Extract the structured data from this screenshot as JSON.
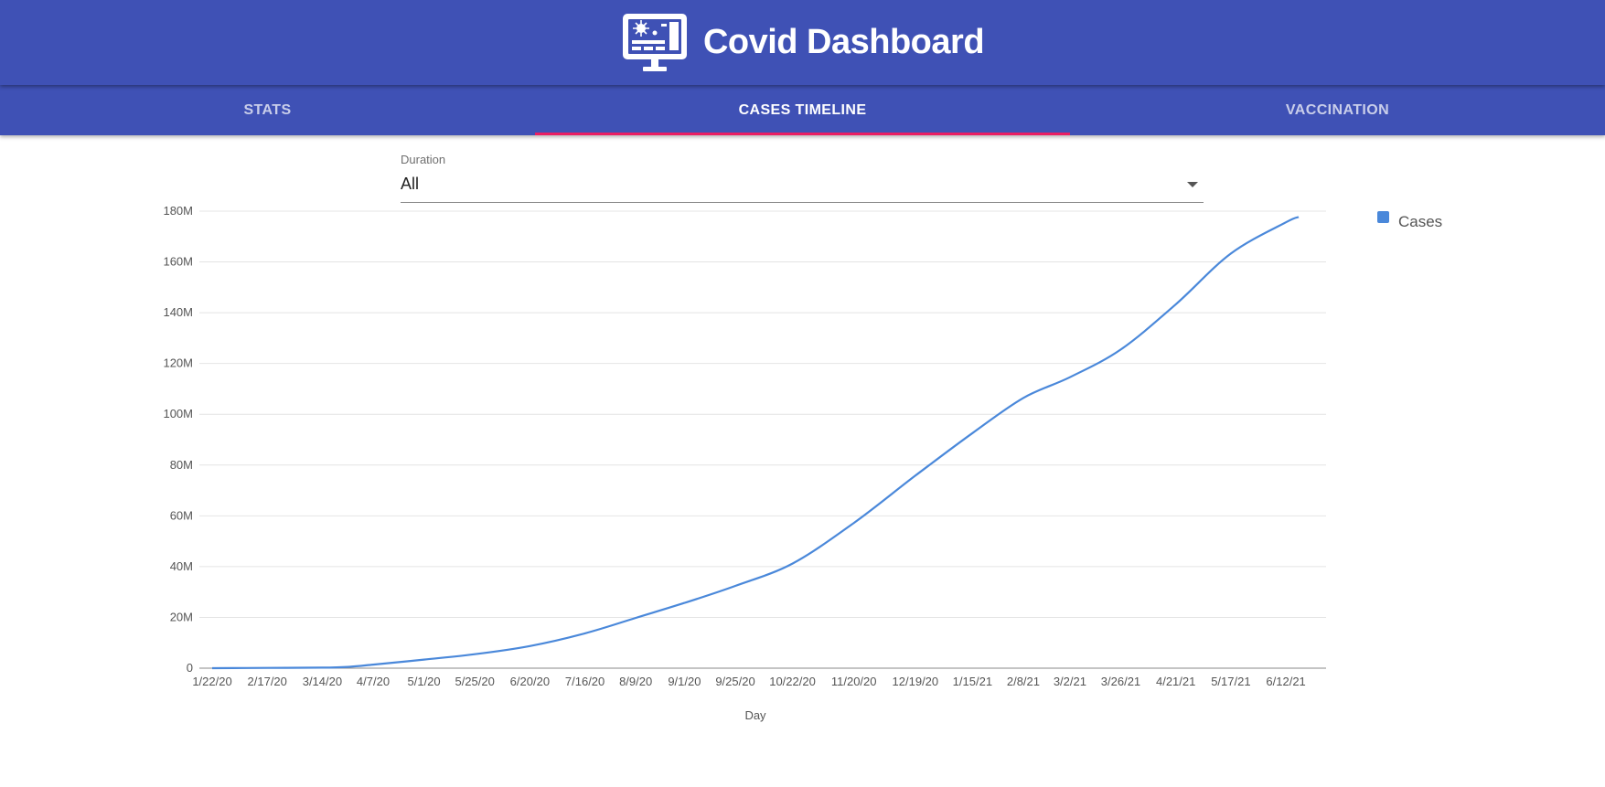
{
  "app": {
    "title": "Covid Dashboard",
    "logo_icon": "dashboard-monitor-icon"
  },
  "colors": {
    "primary": "#3f51b5",
    "tab_indicator": "#e91e63",
    "series": "#4a88da",
    "grid": "#e4e4e4",
    "axis": "#8a8a8a"
  },
  "tabs": [
    {
      "label": "STATS",
      "active": false
    },
    {
      "label": "CASES TIMELINE",
      "active": true
    },
    {
      "label": "VACCINATION",
      "active": false
    }
  ],
  "duration_select": {
    "label": "Duration",
    "value": "All",
    "icon": "dropdown-arrow-icon"
  },
  "chart_data": {
    "type": "line",
    "xlabel": "Day",
    "ylabel": "",
    "ylim": [
      0,
      180000000
    ],
    "y_ticks": [
      0,
      20000000,
      40000000,
      60000000,
      80000000,
      100000000,
      120000000,
      140000000,
      160000000,
      180000000
    ],
    "y_tick_labels": [
      "0",
      "20M",
      "40M",
      "60M",
      "80M",
      "100M",
      "120M",
      "140M",
      "160M",
      "180M"
    ],
    "x_tick_labels": [
      "1/22/20",
      "2/17/20",
      "3/14/20",
      "4/7/20",
      "5/1/20",
      "5/25/20",
      "6/20/20",
      "7/16/20",
      "8/9/20",
      "9/1/20",
      "9/25/20",
      "10/22/20",
      "11/20/20",
      "12/19/20",
      "1/15/21",
      "2/8/21",
      "3/2/21",
      "3/26/21",
      "4/21/21",
      "5/17/21",
      "6/12/21"
    ],
    "grid": true,
    "legend_position": "top-right",
    "series": [
      {
        "name": "Cases",
        "color": "#4a88da",
        "points": [
          [
            "1/22/20",
            0
          ],
          [
            "2/17/20",
            100000
          ],
          [
            "3/14/20",
            200000
          ],
          [
            "3/26/20",
            500000
          ],
          [
            "4/7/20",
            1400000
          ],
          [
            "5/1/20",
            3400000
          ],
          [
            "5/25/20",
            5500000
          ],
          [
            "6/20/20",
            8700000
          ],
          [
            "7/16/20",
            13700000
          ],
          [
            "8/9/20",
            19800000
          ],
          [
            "9/1/20",
            25700000
          ],
          [
            "9/25/20",
            32400000
          ],
          [
            "10/22/20",
            41200000
          ],
          [
            "11/20/20",
            57200000
          ],
          [
            "12/19/20",
            75800000
          ],
          [
            "1/15/21",
            92600000
          ],
          [
            "2/8/21",
            106400000
          ],
          [
            "3/2/21",
            114600000
          ],
          [
            "3/26/21",
            125500000
          ],
          [
            "4/21/21",
            143300000
          ],
          [
            "5/17/21",
            163300000
          ],
          [
            "6/12/21",
            175600000
          ],
          [
            "6/18/21",
            177700000
          ]
        ]
      }
    ]
  }
}
